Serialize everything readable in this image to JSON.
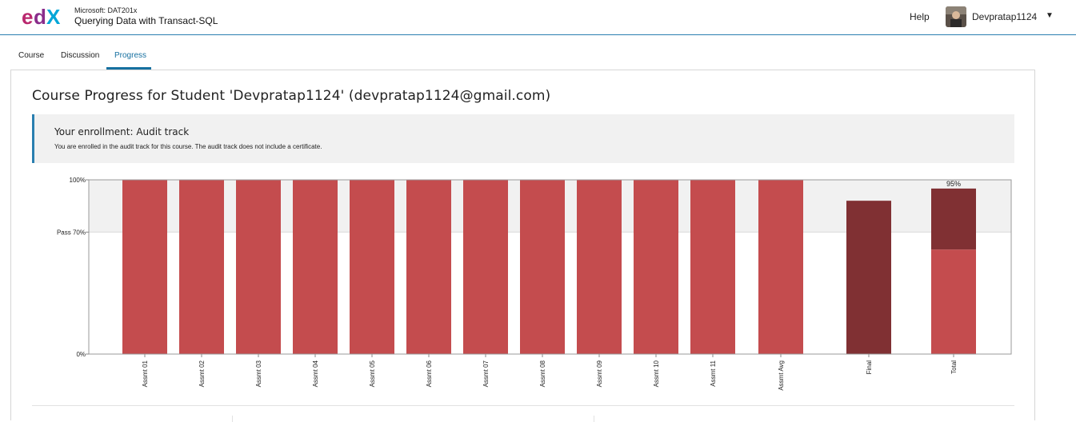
{
  "header": {
    "logo_text": "edX",
    "course_org": "Microsoft: DAT201x",
    "course_title": "Querying Data with Transact-SQL",
    "help_label": "Help",
    "username": "Devpratap1124",
    "user_menu_icon": "caret-down-icon"
  },
  "tabs": [
    {
      "label": "Course"
    },
    {
      "label": "Discussion"
    },
    {
      "label": "Progress",
      "active": true
    }
  ],
  "main": {
    "title": "Course Progress for Student 'Devpratap1124' (devpratap1124@gmail.com)",
    "enrollment": {
      "heading": "Your enrollment: Audit track",
      "text": "You are enrolled in the audit track for this course. The audit track does not include a certificate."
    }
  },
  "colors": {
    "bar": "#c44c4e",
    "bar_dark": "#803033",
    "accent": "#1670a0",
    "pass_band": "#f1f1f1"
  },
  "chart_data": {
    "type": "bar",
    "categories": [
      "Assmt 01",
      "Assmt 02",
      "Assmt 03",
      "Assmt 04",
      "Assmt 05",
      "Assmt 06",
      "Assmt 07",
      "Assmt 08",
      "Assmt 09",
      "Assmt 10",
      "Assmt 11",
      "Assmt Avg",
      "Final",
      "Total"
    ],
    "values": [
      100,
      100,
      100,
      100,
      100,
      100,
      100,
      100,
      100,
      100,
      100,
      100,
      88,
      95
    ],
    "total_segments": [
      60,
      35
    ],
    "ylim": [
      0,
      100
    ],
    "yticks": [
      {
        "value": 100,
        "label": "100%"
      },
      {
        "value": 70,
        "label": "Pass 70%"
      },
      {
        "value": 0,
        "label": "0%"
      }
    ],
    "data_labels": [
      {
        "category": "Total",
        "label": "95%"
      }
    ],
    "pass_threshold": 70
  }
}
